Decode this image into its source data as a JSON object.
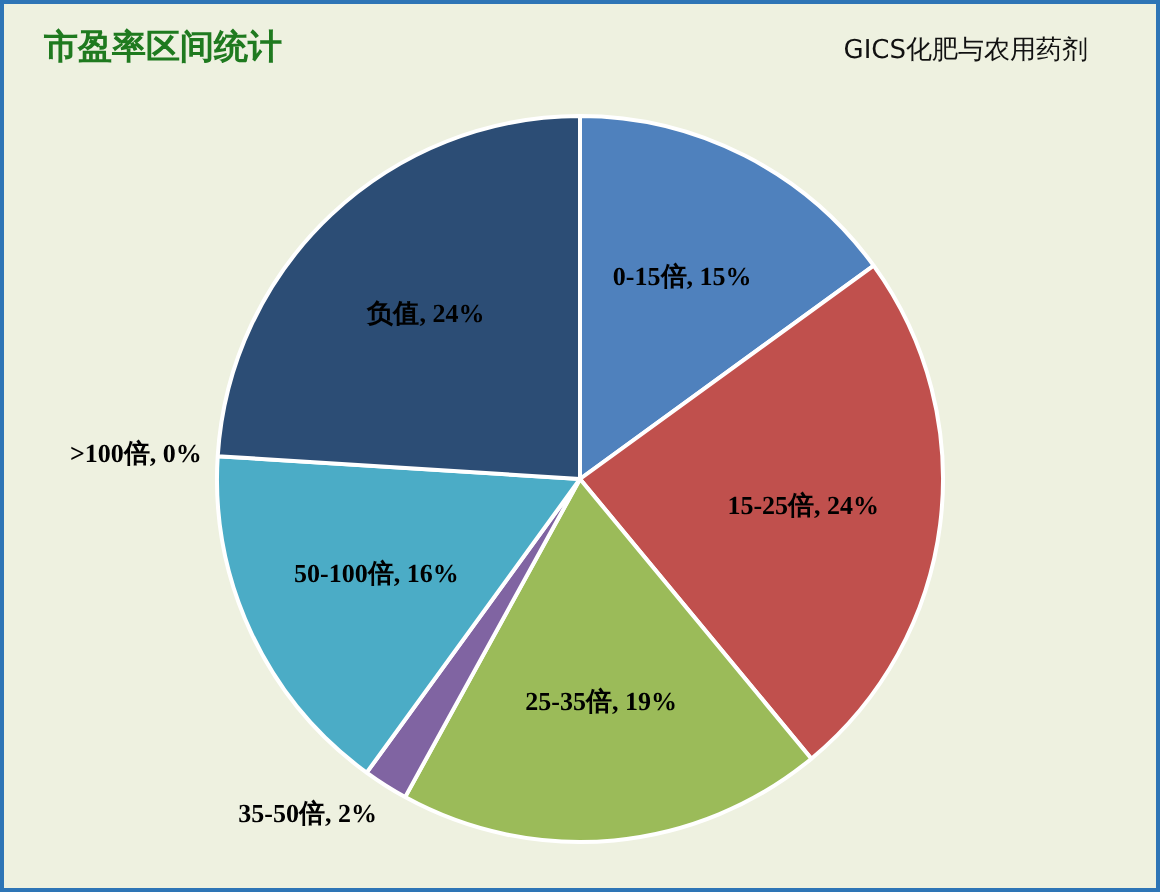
{
  "chart_data": {
    "type": "pie",
    "title": "市盈率区间统计",
    "subtitle": "GICS化肥与农用药剂",
    "categories": [
      "0-15倍",
      "15-25倍",
      "25-35倍",
      "35-50倍",
      "50-100倍",
      ">100倍",
      "负值"
    ],
    "values": [
      15,
      24,
      19,
      2,
      16,
      0,
      24
    ],
    "colors": [
      "#4f81bd",
      "#c0504d",
      "#9bbb59",
      "#8064a2",
      "#4bacc6",
      "#f79646",
      "#2c4d75"
    ],
    "value_labels": [
      ", 15%",
      ", 24%",
      ", 19%",
      ", 2%",
      ", 16%",
      ", 0%",
      ", 24%"
    ],
    "legend": false
  }
}
